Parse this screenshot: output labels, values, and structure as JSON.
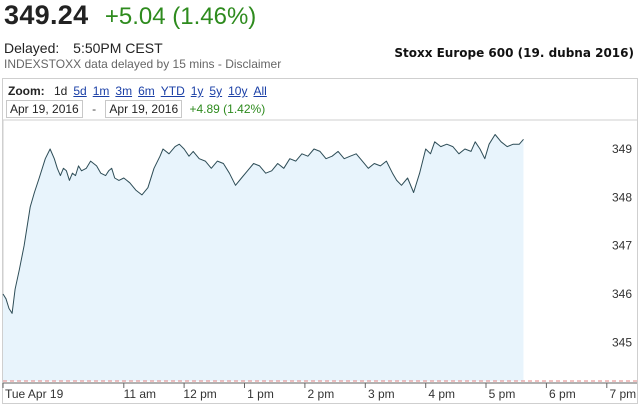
{
  "quote": {
    "price": "349.24",
    "change": "+5.04 (1.46%)",
    "delayed_label": "Delayed:",
    "delayed_time": "5:50PM CEST",
    "source_note": "INDEXSTOXX data delayed by 15 mins - Disclaimer"
  },
  "caption": "Stoxx Europe 600 (19. dubna 2016)",
  "zoom": {
    "label": "Zoom:",
    "options": [
      "1d",
      "5d",
      "1m",
      "3m",
      "6m",
      "YTD",
      "1y",
      "5y",
      "10y",
      "All"
    ],
    "active": "1d"
  },
  "range": {
    "from": "Apr 19, 2016",
    "separator": "-",
    "to": "Apr 19, 2016",
    "change": "+4.89 (1.42%)"
  },
  "colors": {
    "line": "#2e4d57",
    "fill": "#e8f4fc",
    "positive": "#2e8b1e",
    "link": "#1a3fa6"
  },
  "chart_data": {
    "type": "area",
    "title": "",
    "xlabel": "",
    "ylabel": "",
    "x_unit": "hours (CEST)",
    "xlim": [
      9.0,
      19.5
    ],
    "ylim": [
      344.2,
      349.6
    ],
    "yticks": [
      345,
      346,
      347,
      348,
      349
    ],
    "x_ticks": [
      {
        "label": "Tue Apr 19",
        "x": 9.0
      },
      {
        "label": "11 am",
        "x": 11.0
      },
      {
        "label": "12 pm",
        "x": 12.0
      },
      {
        "label": "1 pm",
        "x": 13.0
      },
      {
        "label": "2 pm",
        "x": 14.0
      },
      {
        "label": "3 pm",
        "x": 15.0
      },
      {
        "label": "4 pm",
        "x": 16.0
      },
      {
        "label": "5 pm",
        "x": 17.0
      },
      {
        "label": "6 pm",
        "x": 18.0
      },
      {
        "label": "7 pm",
        "x": 19.0
      }
    ],
    "grid": false,
    "baseline": 344.2,
    "x": [
      9.0,
      9.05,
      9.1,
      9.15,
      9.2,
      9.27,
      9.35,
      9.45,
      9.52,
      9.6,
      9.7,
      9.78,
      9.85,
      9.9,
      9.95,
      10.0,
      10.05,
      10.1,
      10.15,
      10.2,
      10.25,
      10.3,
      10.38,
      10.45,
      10.55,
      10.62,
      10.7,
      10.75,
      10.8,
      10.85,
      10.92,
      11.0,
      11.05,
      11.1,
      11.2,
      11.3,
      11.4,
      11.5,
      11.6,
      11.65,
      11.75,
      11.85,
      11.92,
      12.0,
      12.08,
      12.15,
      12.25,
      12.35,
      12.45,
      12.55,
      12.65,
      12.75,
      12.85,
      12.95,
      13.05,
      13.15,
      13.25,
      13.35,
      13.45,
      13.55,
      13.65,
      13.75,
      13.85,
      13.95,
      14.05,
      14.15,
      14.25,
      14.35,
      14.45,
      14.55,
      14.65,
      14.75,
      14.85,
      14.95,
      15.05,
      15.15,
      15.25,
      15.35,
      15.45,
      15.52,
      15.6,
      15.7,
      15.8,
      15.9,
      16.0,
      16.08,
      16.15,
      16.25,
      16.35,
      16.45,
      16.55,
      16.65,
      16.75,
      16.82,
      16.9,
      16.98,
      17.05,
      17.15,
      17.25,
      17.35,
      17.45,
      17.55,
      17.62
    ],
    "series": [
      {
        "values": [
          346.0,
          345.9,
          345.7,
          345.6,
          346.1,
          346.5,
          347.0,
          347.8,
          348.1,
          348.4,
          348.8,
          349.0,
          348.8,
          348.6,
          348.45,
          348.6,
          348.55,
          348.35,
          348.5,
          348.45,
          348.65,
          348.55,
          348.6,
          348.75,
          348.65,
          348.5,
          348.45,
          348.55,
          348.6,
          348.4,
          348.35,
          348.4,
          348.35,
          348.3,
          348.15,
          348.05,
          348.2,
          348.6,
          348.85,
          349.0,
          348.9,
          349.05,
          349.1,
          349.0,
          348.85,
          348.95,
          348.8,
          348.75,
          348.6,
          348.75,
          348.7,
          348.5,
          348.25,
          348.4,
          348.55,
          348.7,
          348.65,
          348.5,
          348.55,
          348.7,
          348.6,
          348.8,
          348.75,
          348.9,
          348.85,
          349.0,
          348.95,
          348.8,
          348.85,
          348.95,
          348.8,
          348.85,
          348.9,
          348.75,
          348.6,
          348.7,
          348.65,
          348.75,
          348.5,
          348.35,
          348.25,
          348.4,
          348.1,
          348.5,
          349.0,
          348.9,
          349.15,
          349.05,
          349.1,
          349.05,
          348.9,
          349.0,
          348.95,
          349.15,
          349.0,
          348.8,
          349.1,
          349.3,
          349.15,
          349.05,
          349.1,
          349.1,
          349.2
        ]
      }
    ]
  }
}
